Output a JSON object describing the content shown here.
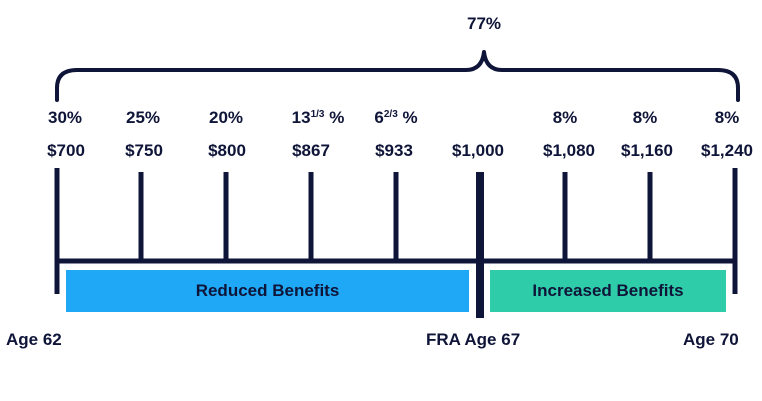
{
  "total_label": "77%",
  "markers": [
    {
      "pct": "30%",
      "amount": "$700"
    },
    {
      "pct": "25%",
      "amount": "$750"
    },
    {
      "pct": "20%",
      "amount": "$800"
    },
    {
      "pct_main": "13",
      "pct_frac": "1/3",
      "pct_unit": "%",
      "amount": "$867"
    },
    {
      "pct_main": "6",
      "pct_frac": "2/3",
      "pct_unit": "%",
      "amount": "$933"
    },
    {
      "pct": "",
      "amount": "$1,000"
    },
    {
      "pct": "8%",
      "amount": "$1,080"
    },
    {
      "pct": "8%",
      "amount": "$1,160"
    },
    {
      "pct": "8%",
      "amount": "$1,240"
    }
  ],
  "bands": {
    "reduced": "Reduced Benefits",
    "increased": "Increased Benefits"
  },
  "ages": {
    "start": "Age 62",
    "fra": "FRA Age 67",
    "end": "Age 70"
  },
  "colors": {
    "ink": "#0f1538",
    "reduced": "#1ea8f5",
    "increased": "#2fcca9"
  }
}
